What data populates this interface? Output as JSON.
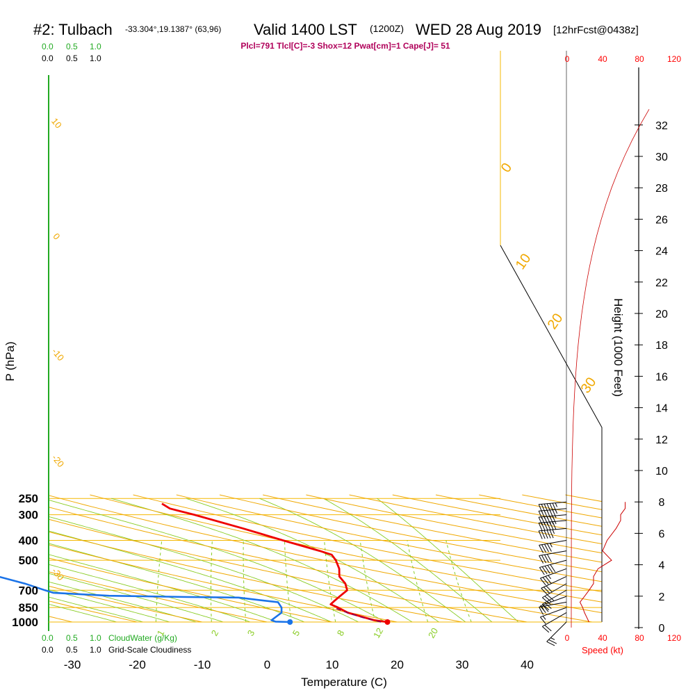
{
  "header": {
    "station": "#2: Tulbach",
    "coords": "-33.304°,19.1387° (63,96)",
    "valid": "Valid 1400 LST",
    "valid_z": "(1200Z)",
    "date": "WED 28 Aug 2019",
    "forecast": "[12hrFcst@0438z]",
    "indices": "Plcl=791 Tlcl[C]=-3 Shox=12 Pwat[cm]=1 Cape[J]= 51"
  },
  "top_scales": {
    "cloudwater_ticks": [
      "0.0",
      "0.5",
      "1.0"
    ],
    "cloudiness_ticks": [
      "0.0",
      "0.5",
      "1.0"
    ]
  },
  "bottom_scales": {
    "cloudwater_ticks": [
      "0.0",
      "0.5",
      "1.0"
    ],
    "cloudwater_label": "CloudWater (g/Kg)",
    "cloudiness_ticks": [
      "0.0",
      "0.5",
      "1.0"
    ],
    "cloudiness_label": "Grid-Scale Cloudiness"
  },
  "speed_axis": {
    "ticks": [
      "0",
      "40",
      "80",
      "120"
    ],
    "label": "Speed (kt)"
  },
  "colors": {
    "isobar": "#f5b800",
    "dry_adiabat": "#f0a800",
    "moist_adiabat": "#88cc22",
    "mixing_ratio": "#88cc22",
    "temperature": "#ee0000",
    "dewpoint": "#1a73e8",
    "parcel": "#880055",
    "green_axis": "#22aa22"
  },
  "chart_data": {
    "type": "skew-t",
    "xlabel": "Temperature (C)",
    "ylabel": "P (hPa)",
    "right_ylabel": "Height (1000 Feet)",
    "x_ticks": [
      -30,
      -20,
      -10,
      0,
      10,
      20,
      30,
      40
    ],
    "xlim": [
      -33,
      44
    ],
    "p_ticks": [
      250,
      300,
      400,
      500,
      700,
      850,
      1000
    ],
    "ylim_hpa": [
      1000,
      250
    ],
    "height_ticks": [
      0,
      2,
      4,
      6,
      8,
      10,
      12,
      14,
      16,
      18,
      20,
      22,
      24,
      26,
      28,
      30,
      32
    ],
    "mixing_ratio_labels": [
      "1",
      "2",
      "3",
      "5",
      "8",
      "12",
      "20"
    ],
    "dry_adiabat_labels": [
      "10",
      "0",
      "-10",
      "-20",
      "-30"
    ],
    "moist_adiabat_labels": [
      "0",
      "10",
      "20",
      "30"
    ],
    "temperature": [
      {
        "p": 1000,
        "t": 18.5
      },
      {
        "p": 980,
        "t": 16.2
      },
      {
        "p": 950,
        "t": 14.3
      },
      {
        "p": 900,
        "t": 11.1
      },
      {
        "p": 850,
        "t": 8.9
      },
      {
        "p": 820,
        "t": 7.3
      },
      {
        "p": 790,
        "t": 7.4
      },
      {
        "p": 750,
        "t": 7.6
      },
      {
        "p": 700,
        "t": 7.9
      },
      {
        "p": 650,
        "t": 6.7
      },
      {
        "p": 600,
        "t": 4.8
      },
      {
        "p": 550,
        "t": 3.7
      },
      {
        "p": 500,
        "t": 2.0
      },
      {
        "p": 470,
        "t": 0.6
      },
      {
        "p": 450,
        "t": -1.8
      },
      {
        "p": 400,
        "t": -8.9
      },
      {
        "p": 350,
        "t": -16.7
      },
      {
        "p": 300,
        "t": -26.1
      },
      {
        "p": 280,
        "t": -30.7
      },
      {
        "p": 265,
        "t": -32.6
      }
    ],
    "dewpoint": [
      {
        "p": 1000,
        "t": 3.5
      },
      {
        "p": 995,
        "t": 1.2
      },
      {
        "p": 980,
        "t": 0.4
      },
      {
        "p": 900,
        "t": 0.9
      },
      {
        "p": 850,
        "t": 0.2
      },
      {
        "p": 800,
        "t": -1.1
      },
      {
        "p": 780,
        "t": -4.6
      },
      {
        "p": 760,
        "t": -7.8
      },
      {
        "p": 755,
        "t": -15.7
      },
      {
        "p": 745,
        "t": -28.0
      },
      {
        "p": 720,
        "t": -37.0
      },
      {
        "p": 700,
        "t": -38.6
      },
      {
        "p": 650,
        "t": -42.6
      },
      {
        "p": 600,
        "t": -47.7
      },
      {
        "p": 500,
        "t": -60.4
      },
      {
        "p": 470,
        "t": -65.5
      },
      {
        "p": 420,
        "t": -57.2
      },
      {
        "p": 400,
        "t": -53.8
      },
      {
        "p": 350,
        "t": -55.4
      },
      {
        "p": 320,
        "t": -61.1
      },
      {
        "p": 290,
        "t": -67.4
      },
      {
        "p": 265,
        "t": -70.7
      }
    ],
    "parcel": [
      {
        "p": 1000,
        "t": 17.5
      },
      {
        "p": 950,
        "t": 14.0
      },
      {
        "p": 900,
        "t": 11.0
      },
      {
        "p": 850,
        "t": 8.2
      }
    ],
    "surface_points": [
      {
        "name": "temperature",
        "p": 1000,
        "t": 18.5
      },
      {
        "name": "dewpoint",
        "p": 1000,
        "t": 3.5
      }
    ],
    "wind_barbs": [
      {
        "p": 1000,
        "dir": 315,
        "kt": 25
      },
      {
        "p": 900,
        "dir": 300,
        "kt": 20
      },
      {
        "p": 850,
        "dir": 290,
        "kt": 18
      },
      {
        "p": 800,
        "dir": 280,
        "kt": 15
      },
      {
        "p": 750,
        "dir": 290,
        "kt": 20
      },
      {
        "p": 700,
        "dir": 300,
        "kt": 25
      },
      {
        "p": 650,
        "dir": 300,
        "kt": 30
      },
      {
        "p": 600,
        "dir": 295,
        "kt": 30
      },
      {
        "p": 550,
        "dir": 290,
        "kt": 35
      },
      {
        "p": 500,
        "dir": 285,
        "kt": 50
      },
      {
        "p": 450,
        "dir": 280,
        "kt": 40
      },
      {
        "p": 400,
        "dir": 280,
        "kt": 45
      },
      {
        "p": 350,
        "dir": 275,
        "kt": 55
      },
      {
        "p": 320,
        "dir": 275,
        "kt": 60
      },
      {
        "p": 300,
        "dir": 275,
        "kt": 60
      },
      {
        "p": 280,
        "dir": 275,
        "kt": 65
      },
      {
        "p": 260,
        "dir": 275,
        "kt": 65
      }
    ]
  }
}
